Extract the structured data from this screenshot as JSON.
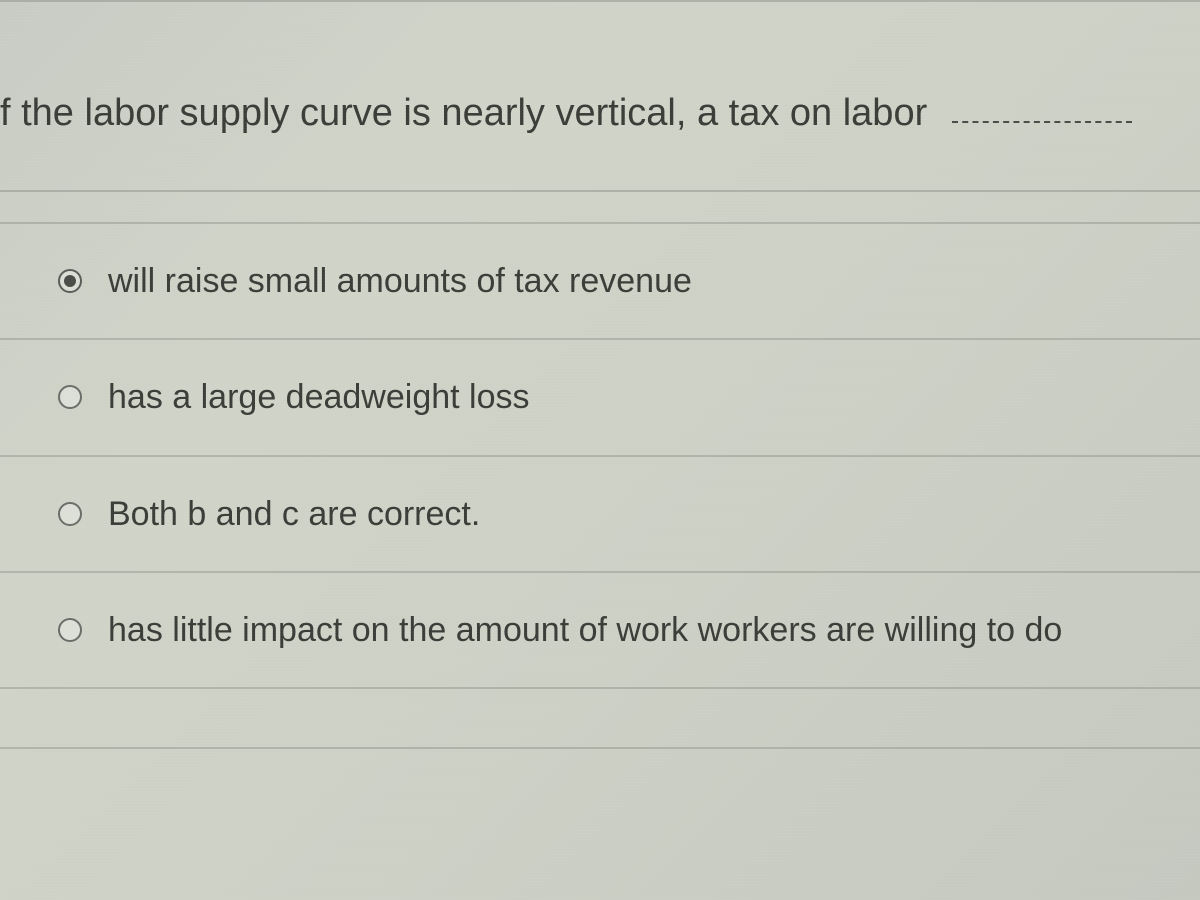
{
  "question": {
    "text": "f the labor supply curve is nearly vertical, a tax on labor",
    "has_blank": true
  },
  "options": [
    {
      "label": "will raise small amounts of tax revenue",
      "selected": true
    },
    {
      "label": "has a large deadweight loss",
      "selected": false
    },
    {
      "label": "Both b and c are correct.",
      "selected": false
    },
    {
      "label": "has little impact on the amount of work workers are willing to do",
      "selected": false
    }
  ],
  "colors": {
    "text": "#3a3d38",
    "border": "#8c9088",
    "background_start": "#c8ccc4",
    "background_end": "#c4c8bf",
    "radio_border": "#6a6d68",
    "radio_fill": "#4a4d48"
  },
  "typography": {
    "question_fontsize": 38,
    "option_fontsize": 34,
    "font_weight": 400
  }
}
